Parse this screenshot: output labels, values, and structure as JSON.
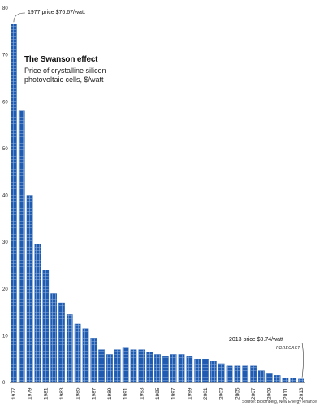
{
  "chart_data": {
    "type": "bar",
    "title": "The Swanson effect",
    "subtitle": "Price of crystalline silicon photovoltaic cells, $/watt",
    "ylim": [
      0,
      80
    ],
    "yticks": [
      0,
      10,
      20,
      30,
      40,
      50,
      60,
      70,
      80
    ],
    "grid": false,
    "categories": [
      "1977",
      "1978",
      "1979",
      "1980",
      "1981",
      "1982",
      "1983",
      "1984",
      "1985",
      "1986",
      "1987",
      "1988",
      "1989",
      "1990",
      "1991",
      "1992",
      "1993",
      "1994",
      "1995",
      "1996",
      "1997",
      "1998",
      "1999",
      "2000",
      "2001",
      "2002",
      "2003",
      "2004",
      "2005",
      "2006",
      "2007",
      "2008",
      "2009",
      "2010",
      "2011",
      "2012",
      "2013"
    ],
    "xtick_labels": [
      "1977",
      "1979",
      "1981",
      "1983",
      "1985",
      "1987",
      "1989",
      "1991",
      "1993",
      "1995",
      "1997",
      "1999",
      "2001",
      "2003",
      "2005",
      "2007",
      "2009",
      "2011",
      "2013"
    ],
    "values": [
      76.67,
      58.0,
      40.0,
      29.5,
      24.0,
      19.0,
      17.0,
      14.5,
      12.5,
      11.5,
      9.5,
      7.0,
      6.0,
      7.0,
      7.5,
      7.0,
      7.0,
      6.5,
      6.0,
      5.5,
      6.0,
      6.0,
      5.5,
      5.0,
      5.0,
      4.5,
      4.0,
      3.5,
      3.5,
      3.5,
      3.5,
      2.5,
      2.0,
      1.5,
      1.0,
      0.9,
      0.74
    ],
    "annotations": [
      {
        "text": "1977 price $76.67/watt",
        "category": "1977"
      },
      {
        "text": "2013 price $0.74/watt",
        "category": "2013"
      },
      {
        "text": "FORECAST",
        "category": "2013"
      }
    ],
    "bar_color": "#1f5bb0",
    "source": "Source: Bloomberg, New Energy Finance"
  }
}
